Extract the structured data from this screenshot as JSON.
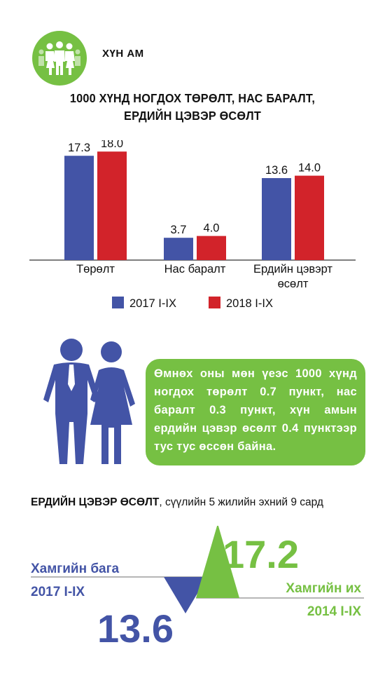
{
  "header": {
    "section_title": "ХҮН АМ",
    "icon": "people-group-icon"
  },
  "chart_title_line1": "1000 ХҮНД НОГДОХ ТӨРӨЛТ, НАС БАРАЛТ,",
  "chart_title_line2": "ЕРДИЙН ЦЭВЭР ӨСӨЛТ",
  "chart_data": [
    {
      "type": "bar",
      "categories": [
        "Төрөлт",
        "Нас баралт",
        "Ердийн цэвэрт өсөлт"
      ],
      "series": [
        {
          "name": "2017 I-IX",
          "color": "#4354a6",
          "values": [
            17.3,
            3.7,
            13.6
          ]
        },
        {
          "name": "2018 I-IX",
          "color": "#d2232a",
          "values": [
            18.0,
            4.0,
            14.0
          ]
        }
      ],
      "value_labels": [
        [
          "17.3",
          "3.7",
          "13.6"
        ],
        [
          "18.0",
          "4.0",
          "14.0"
        ]
      ],
      "category_label_lines": [
        [
          "Төрөлт"
        ],
        [
          "Нас баралт"
        ],
        [
          "Ердийн цэвэрт",
          "өсөлт"
        ]
      ],
      "ylim": [
        0,
        20
      ],
      "legend": "bottom"
    },
    {
      "type": "bar",
      "title_bold": "ЕРДИЙН ЦЭВЭР ӨСӨЛТ",
      "title_rest": ", сүүлийн 5 жилийн эхний 9 сард",
      "series": [
        {
          "label": "Хамгийн бага",
          "period": "2017 I-IX",
          "value": 13.6,
          "value_text": "13.6",
          "color": "#4354a6"
        },
        {
          "label": "Хамгийн их",
          "period": "2014 I-IX",
          "value": 17.2,
          "value_text": "17.2",
          "color": "#76c043"
        }
      ]
    }
  ],
  "note": {
    "text": "Өмнөх оны мөн үеэс 1000 хүнд ногдох төрөлт 0.7 пункт, нас баралт 0.3 пункт, хүн амын ердийн цэвэр өсөлт 0.4 пунктээр тус тус өссөн байна.",
    "color": "#76c043"
  },
  "icons": {
    "couple": "couple-icon"
  },
  "colors": {
    "blue": "#4354a6",
    "red": "#d2232a",
    "green": "#76c043"
  }
}
